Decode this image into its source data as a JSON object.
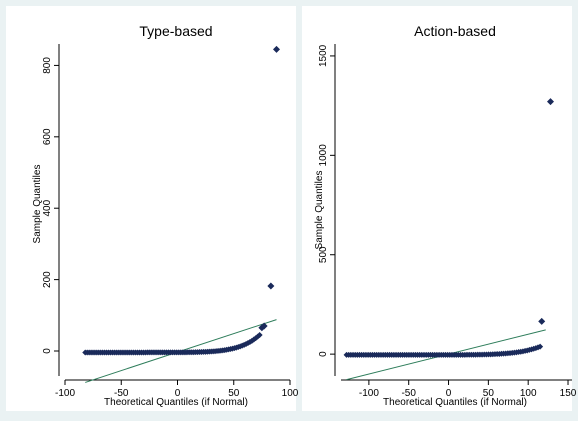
{
  "figure": {
    "background": "#eaf2f3",
    "plot_background": "#ffffff",
    "marker_color": "#1a2a5a",
    "line_color": "#2e7d5b"
  },
  "chart_data": [
    {
      "type": "scatter",
      "title": "Type-based",
      "xlabel": "Theoretical Quantiles (if Normal)",
      "ylabel": "Sample Quantiles",
      "xlim": [
        -100,
        100
      ],
      "ylim": [
        -70,
        860
      ],
      "xticks": [
        -100,
        -50,
        0,
        50,
        100
      ],
      "yticks": [
        0,
        200,
        400,
        600,
        800
      ],
      "grid": false,
      "reference_line": {
        "x": [
          -82,
          88
        ],
        "y": [
          -88,
          88
        ]
      },
      "outliers": [
        {
          "x": 75,
          "y": 65
        },
        {
          "x": 77,
          "y": 70
        },
        {
          "x": 83,
          "y": 182
        },
        {
          "x": 88,
          "y": 845
        }
      ],
      "bulk": {
        "x_start": -82,
        "x_end": 73,
        "y_start": -4,
        "y_end": 45
      }
    },
    {
      "type": "scatter",
      "title": "Action-based",
      "xlabel": "Theoretical Quantiles (if Normal)",
      "ylabel": "Sample Quantiles",
      "xlim": [
        -135,
        155
      ],
      "ylim": [
        -110,
        1560
      ],
      "xticks": [
        -100,
        -50,
        0,
        50,
        100,
        150
      ],
      "yticks": [
        0,
        500,
        1000,
        1500
      ],
      "grid": false,
      "reference_line": {
        "x": [
          -128,
          122
        ],
        "y": [
          -128,
          122
        ]
      },
      "outliers": [
        {
          "x": 117,
          "y": 165
        },
        {
          "x": 128,
          "y": 1270
        }
      ],
      "bulk": {
        "x_start": -128,
        "x_end": 115,
        "y_start": -4,
        "y_end": 38
      }
    }
  ]
}
